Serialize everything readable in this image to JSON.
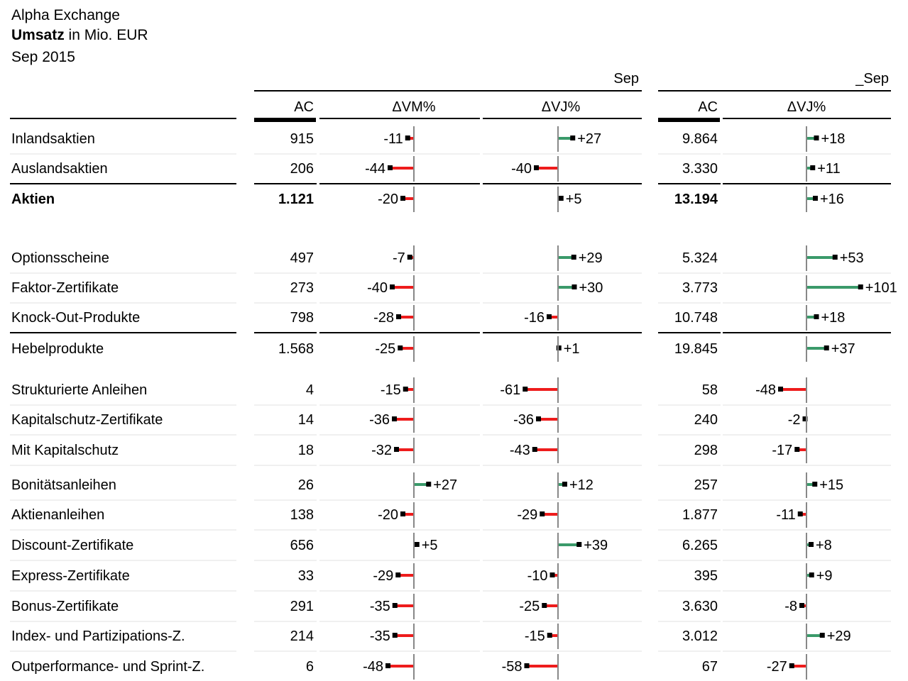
{
  "header": {
    "company": "Alpha Exchange",
    "measure_bold": "Umsatz",
    "measure_rest": " in Mio. EUR",
    "period": "Sep 2015"
  },
  "chart_data": {
    "type": "table",
    "group_titles": [
      "Sep",
      "_Sep"
    ],
    "column_headers": [
      "AC",
      "ΔVM%",
      "ΔVJ%",
      "AC",
      "ΔVJ%"
    ],
    "colors": {
      "positive": "#3a9a6a",
      "negative": "#ee1c1c",
      "axis": "#888888",
      "marker": "#000000"
    },
    "rows": [
      {
        "label": "Inlandsaktien",
        "ac": "915",
        "dvm": -11,
        "dvj": 27,
        "ytd_ac": "9.864",
        "ytd_dvj": 18,
        "bold": false
      },
      {
        "label": "Auslandsaktien",
        "ac": "206",
        "dvm": -44,
        "dvj": -40,
        "ytd_ac": "3.330",
        "ytd_dvj": 11,
        "bold": false
      },
      {
        "label": "Aktien",
        "ac": "1.121",
        "dvm": -20,
        "dvj": 5,
        "ytd_ac": "13.194",
        "ytd_dvj": 16,
        "bold": true
      },
      {
        "label": "Optionsscheine",
        "ac": "497",
        "dvm": -7,
        "dvj": 29,
        "ytd_ac": "5.324",
        "ytd_dvj": 53,
        "bold": false
      },
      {
        "label": "Faktor-Zertifikate",
        "ac": "273",
        "dvm": -40,
        "dvj": 30,
        "ytd_ac": "3.773",
        "ytd_dvj": 101,
        "bold": false
      },
      {
        "label": "Knock-Out-Produkte",
        "ac": "798",
        "dvm": -28,
        "dvj": -16,
        "ytd_ac": "10.748",
        "ytd_dvj": 18,
        "bold": false
      },
      {
        "label": "Hebelprodukte",
        "ac": "1.568",
        "dvm": -25,
        "dvj": 1,
        "ytd_ac": "19.845",
        "ytd_dvj": 37,
        "bold": false
      },
      {
        "label": "Strukturierte Anleihen",
        "ac": "4",
        "dvm": -15,
        "dvj": -61,
        "ytd_ac": "58",
        "ytd_dvj": -48,
        "bold": false
      },
      {
        "label": "Kapitalschutz-Zertifikate",
        "ac": "14",
        "dvm": -36,
        "dvj": -36,
        "ytd_ac": "240",
        "ytd_dvj": -2,
        "bold": false
      },
      {
        "label": "Mit Kapitalschutz",
        "ac": "18",
        "dvm": -32,
        "dvj": -43,
        "ytd_ac": "298",
        "ytd_dvj": -17,
        "bold": false
      },
      {
        "label": "Bonitätsanleihen",
        "ac": "26",
        "dvm": 27,
        "dvj": 12,
        "ytd_ac": "257",
        "ytd_dvj": 15,
        "bold": false
      },
      {
        "label": "Aktienanleihen",
        "ac": "138",
        "dvm": -20,
        "dvj": -29,
        "ytd_ac": "1.877",
        "ytd_dvj": -11,
        "bold": false
      },
      {
        "label": "Discount-Zertifikate",
        "ac": "656",
        "dvm": 5,
        "dvj": 39,
        "ytd_ac": "6.265",
        "ytd_dvj": 8,
        "bold": false
      },
      {
        "label": "Express-Zertifikate",
        "ac": "33",
        "dvm": -29,
        "dvj": -10,
        "ytd_ac": "395",
        "ytd_dvj": 9,
        "bold": false
      },
      {
        "label": "Bonus-Zertifikate",
        "ac": "291",
        "dvm": -35,
        "dvj": -25,
        "ytd_ac": "3.630",
        "ytd_dvj": -8,
        "bold": false
      },
      {
        "label": "Index- und Partizipations-Z.",
        "ac": "214",
        "dvm": -35,
        "dvj": -15,
        "ytd_ac": "3.012",
        "ytd_dvj": 29,
        "bold": false
      },
      {
        "label": "Outperformance- und Sprint-Z.",
        "ac": "6",
        "dvm": -48,
        "dvj": -58,
        "ytd_ac": "67",
        "ytd_dvj": -27,
        "bold": false
      }
    ]
  }
}
